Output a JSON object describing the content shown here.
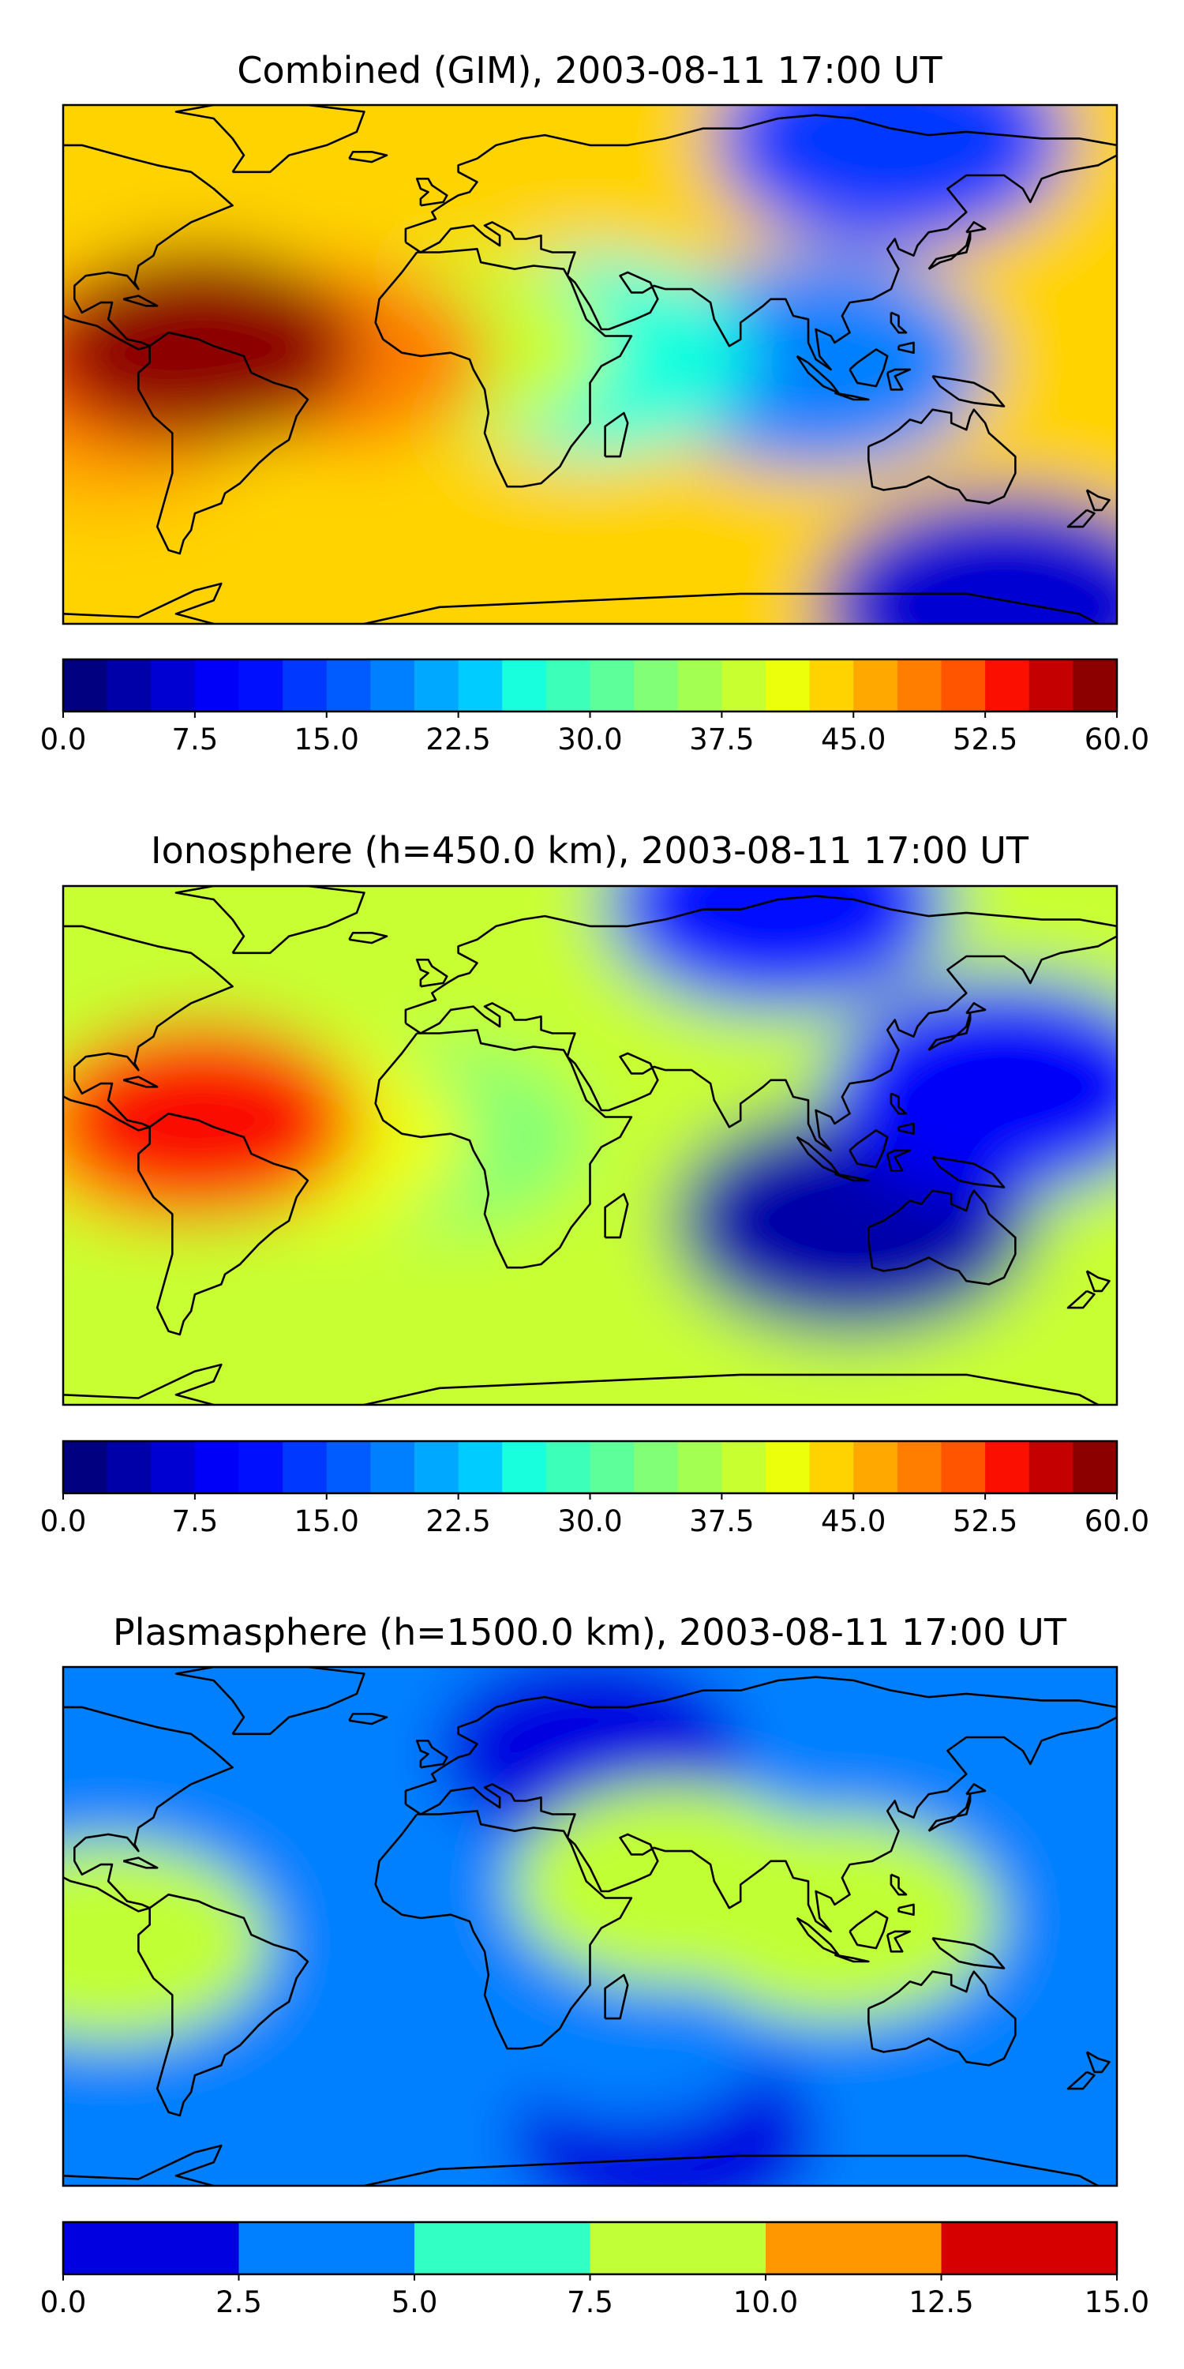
{
  "chart_data": [
    {
      "type": "heatmap",
      "title": "Combined (GIM), 2003-08-11 17:00 UT",
      "xlabel": "",
      "ylabel": "",
      "map": "world coastlines, equirectangular (approx. -100° to 180° lon, -75° to 80° lat)",
      "grid": false,
      "colormap": "jet",
      "colorbar": {
        "position": "below",
        "vmin": 0.0,
        "vmax": 60.0,
        "levels": 24,
        "ticks": [
          "0.0",
          "7.5",
          "15.0",
          "22.5",
          "30.0",
          "37.5",
          "45.0",
          "52.5",
          "60.0"
        ]
      },
      "features": [
        {
          "lon": -63,
          "lat": 8,
          "value": 58
        },
        {
          "lon": -80,
          "lat": 4,
          "value": 50
        },
        {
          "lon": -88,
          "lat": -15,
          "value": 45
        },
        {
          "lon": -58,
          "lat": -14,
          "value": 44
        },
        {
          "lon": -25,
          "lat": 5,
          "value": 48
        },
        {
          "lon": 5,
          "lat": 8,
          "value": 38
        },
        {
          "lon": 40,
          "lat": 5,
          "value": 25
        },
        {
          "lon": 100,
          "lat": 3,
          "value": 19
        },
        {
          "lon": 150,
          "lat": -70,
          "value": 6
        },
        {
          "lon": 120,
          "lat": 70,
          "value": 13
        }
      ]
    },
    {
      "type": "heatmap",
      "title": "Ionosphere  (h=450.0 km), 2003-08-11 17:00 UT",
      "xlabel": "",
      "ylabel": "",
      "map": "world coastlines, equirectangular (approx. -100° to 180° lon, -75° to 80° lat)",
      "grid": false,
      "colormap": "jet",
      "colorbar": {
        "position": "below",
        "vmin": 0.0,
        "vmax": 60.0,
        "levels": 24,
        "ticks": [
          "0.0",
          "7.5",
          "15.0",
          "22.5",
          "30.0",
          "37.5",
          "45.0",
          "52.5",
          "60.0"
        ]
      },
      "features": [
        {
          "lon": -63,
          "lat": 10,
          "value": 53
        },
        {
          "lon": -78,
          "lat": 6,
          "value": 44
        },
        {
          "lon": -83,
          "lat": -14,
          "value": 38
        },
        {
          "lon": -30,
          "lat": 5,
          "value": 42
        },
        {
          "lon": 0,
          "lat": 5,
          "value": 34
        },
        {
          "lon": 110,
          "lat": -20,
          "value": 4
        },
        {
          "lon": 150,
          "lat": 20,
          "value": 8
        },
        {
          "lon": 90,
          "lat": 75,
          "value": 11
        }
      ]
    },
    {
      "type": "heatmap",
      "title": "Plasmasphere (h=1500.0 km), 2003-08-11 17:00 UT",
      "xlabel": "",
      "ylabel": "",
      "map": "world coastlines, equirectangular (approx. -100° to 180° lon, -75° to 80° lat)",
      "grid": false,
      "colormap": "jet",
      "colorbar": {
        "position": "below",
        "vmin": 0.0,
        "vmax": 15.0,
        "levels": 6,
        "ticks": [
          "0.0",
          "2.5",
          "5.0",
          "7.5",
          "10.0",
          "12.5",
          "15.0"
        ]
      },
      "features": [
        {
          "lon": 105,
          "lat": 5,
          "value": 8.8
        },
        {
          "lon": 62,
          "lat": 15,
          "value": 8.3
        },
        {
          "lon": -88,
          "lat": -2,
          "value": 8.1
        },
        {
          "lon": -10,
          "lat": -20,
          "value": 4.0
        },
        {
          "lon": 50,
          "lat": -30,
          "value": 4.0
        },
        {
          "lon": 40,
          "lat": 55,
          "value": 1.5
        },
        {
          "lon": 60,
          "lat": -60,
          "value": 1.5
        }
      ]
    }
  ],
  "colors": {
    "jet_24": [
      "#000080",
      "#0000a9",
      "#0000d2",
      "#0000fa",
      "#0010ff",
      "#0038ff",
      "#005cff",
      "#0080ff",
      "#00a8ff",
      "#00ccff",
      "#18ffdd",
      "#3cffba",
      "#5cff9a",
      "#80ff77",
      "#a4ff53",
      "#c8ff30",
      "#ecff0b",
      "#ffd300",
      "#ffa900",
      "#ff7e00",
      "#ff5400",
      "#fa0f00",
      "#c40000",
      "#8d0000"
    ],
    "jet_6": [
      "#0000e0",
      "#0080ff",
      "#32ffc4",
      "#c1ff36",
      "#ff9800",
      "#d60000"
    ],
    "outline": "#000000",
    "coastline": "#000000"
  }
}
